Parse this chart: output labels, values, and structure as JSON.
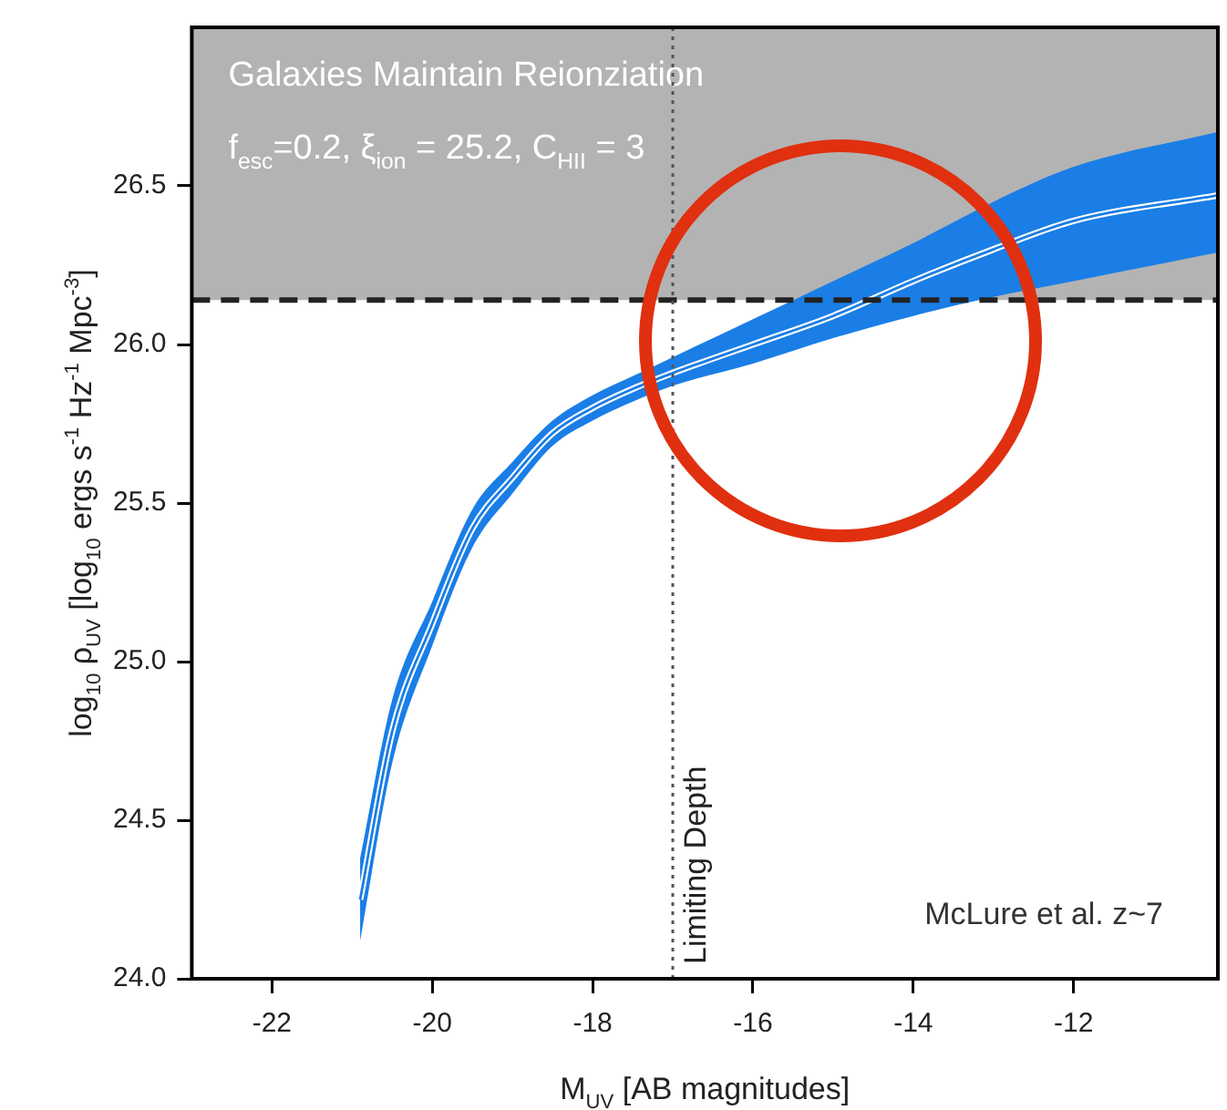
{
  "chart_data": {
    "type": "line",
    "xlabel": "M$_{UV}$ [AB magnitudes]",
    "ylabel": "log$_{10}$ ρ$_{UV}$ [log$_{10}$ ergs s$^{-1}$ Hz$^{-1}$ Mpc$^{-3}$]",
    "x": [
      -20.9,
      -20.5,
      -20.0,
      -19.5,
      -19.0,
      -18.5,
      -18.0,
      -17.5,
      -17.0,
      -16.0,
      -15.0,
      -14.0,
      -13.0,
      -12.0,
      -10.2
    ],
    "series": [
      {
        "color": "#1a7ee6",
        "values": [
          24.25,
          24.78,
          25.12,
          25.42,
          25.58,
          25.72,
          25.8,
          25.86,
          25.91,
          26.0,
          26.09,
          26.2,
          26.3,
          26.39,
          26.47
        ],
        "lower": [
          24.12,
          24.68,
          25.05,
          25.36,
          25.53,
          25.68,
          25.76,
          25.82,
          25.87,
          25.94,
          26.02,
          26.09,
          26.15,
          26.2,
          26.29
        ],
        "upper": [
          24.38,
          24.88,
          25.19,
          25.48,
          25.63,
          25.76,
          25.84,
          25.9,
          25.96,
          26.08,
          26.2,
          26.32,
          26.45,
          26.56,
          26.67
        ]
      }
    ],
    "xlim": [
      -23,
      -10.2
    ],
    "ylim": [
      24,
      27
    ],
    "xticks": [
      -22,
      -20,
      -18,
      -16,
      -14,
      -12
    ],
    "yticks": [
      {
        "value": 24,
        "label": "24.0"
      },
      {
        "value": 24.5,
        "label": "24.5"
      },
      {
        "value": 25,
        "label": "25.0"
      },
      {
        "value": 25.5,
        "label": "25.5"
      },
      {
        "value": 26,
        "label": "26.0"
      },
      {
        "value": 26.5,
        "label": "26.5"
      }
    ],
    "bands": [
      {
        "axis": "y",
        "from": 26.14,
        "to": 27,
        "label": "Galaxies Maintain Reionziation",
        "color": "#b3b3b3"
      }
    ],
    "ref_lines": [
      {
        "axis": "y",
        "value": 26.14,
        "line_style": "dashed",
        "color": "#222222"
      },
      {
        "axis": "x",
        "value": -17,
        "label": "Limiting Depth",
        "line_style": "dotted",
        "color": "#555555"
      }
    ],
    "annotations": [
      "f$_{esc}$=0.2, ξ$_{ion}$ = 25.2, C$_{HII}$ = 3",
      "McLure et al. z~7"
    ],
    "legend": false,
    "grid": false,
    "marker": "none",
    "line_style": "solid"
  }
}
